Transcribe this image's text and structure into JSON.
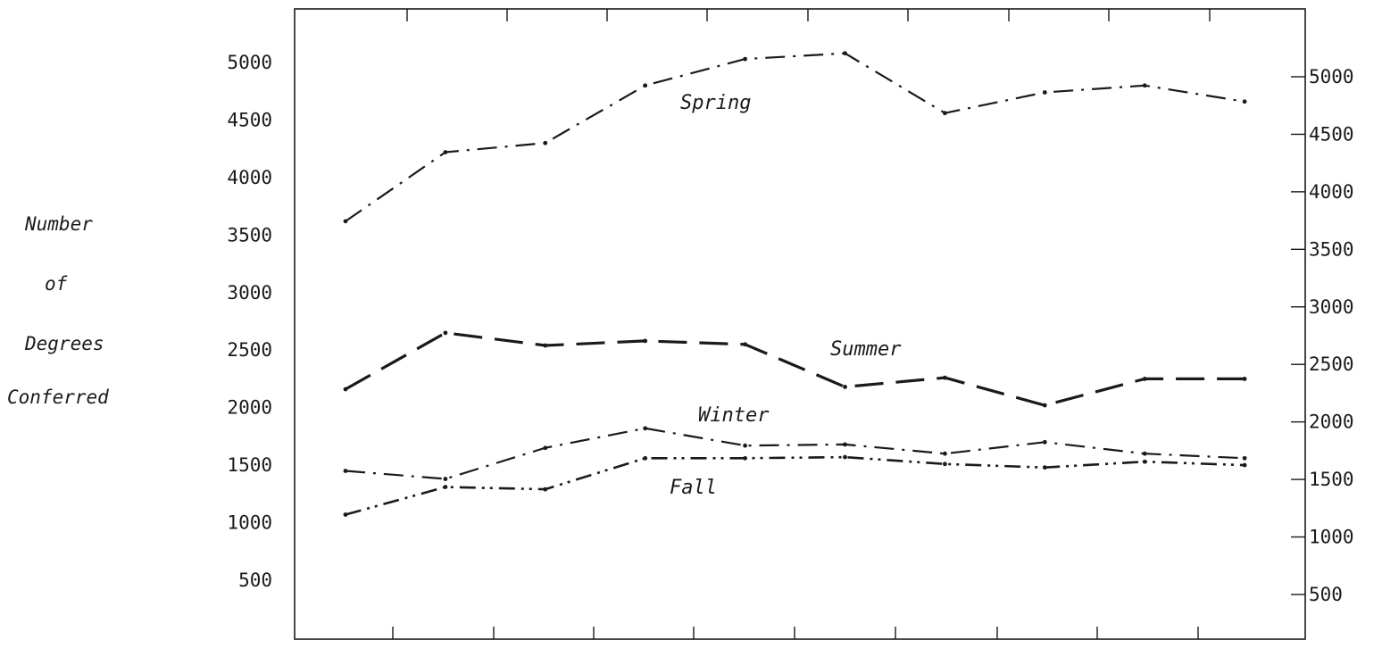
{
  "chart_data": {
    "type": "line",
    "title": "",
    "xlabel": "",
    "ylabel": [
      "Number",
      "of",
      "Degrees",
      "Conferred"
    ],
    "ylim": [
      0,
      5500
    ],
    "yticks": [
      500,
      1000,
      1500,
      2000,
      2500,
      3000,
      3500,
      4000,
      4500,
      5000
    ],
    "right_yticks": [
      500,
      1000,
      1500,
      2000,
      2500,
      3000,
      3500,
      4000,
      4500,
      5000
    ],
    "grid": false,
    "legend": "labels placed next to series",
    "series": [
      {
        "name": "Spring",
        "style": "dash-dot",
        "values": [
          3620,
          4220,
          4300,
          4800,
          5030,
          5080,
          4560,
          4740,
          4800,
          4660
        ]
      },
      {
        "name": "Summer",
        "style": "long-dash",
        "values": [
          2160,
          2650,
          2540,
          2580,
          2550,
          2180,
          2260,
          2020,
          2250,
          2250
        ]
      },
      {
        "name": "Winter",
        "style": "dash-dot",
        "values": [
          1450,
          1380,
          1650,
          1820,
          1670,
          1680,
          1600,
          1700,
          1600,
          1560
        ]
      },
      {
        "name": "Fall",
        "style": "dash-dot-dot",
        "values": [
          1070,
          1310,
          1290,
          1560,
          1560,
          1570,
          1510,
          1480,
          1530,
          1500
        ]
      }
    ],
    "color": "#1a1a1a"
  }
}
